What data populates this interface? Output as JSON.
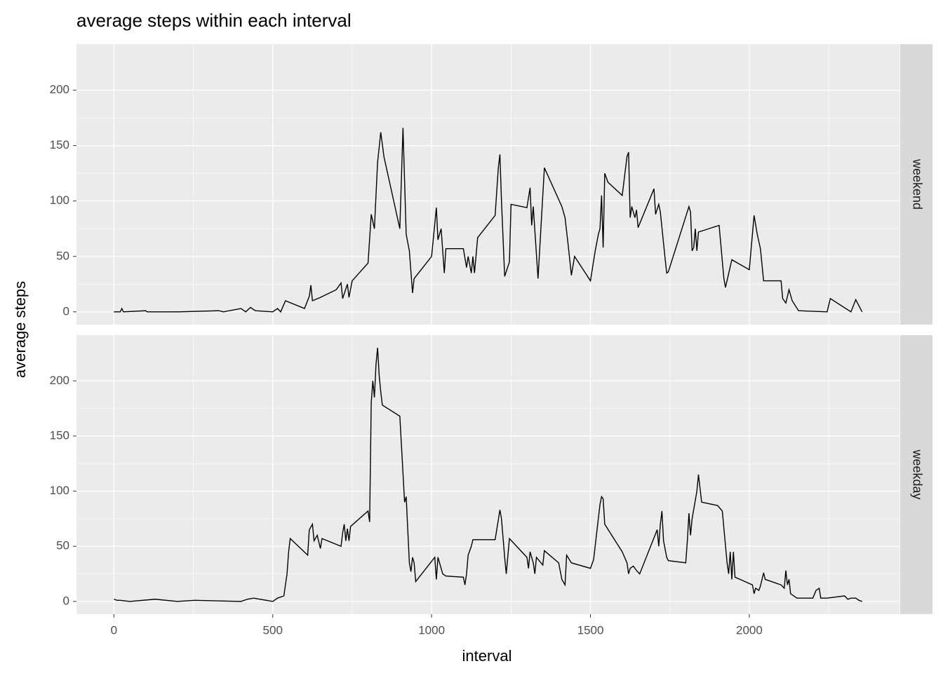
{
  "chart_data": {
    "type": "line",
    "title": "average steps within each interval",
    "x_label": "interval",
    "y_label": "average steps",
    "xlim": [
      -117.75,
      2472.75
    ],
    "xticks": [
      0,
      500,
      1000,
      1500,
      2000
    ],
    "ylim": [
      -11.5,
      241.5
    ],
    "yticks": [
      0,
      50,
      100,
      150,
      200
    ],
    "grid": true,
    "color": "#000000",
    "facets": [
      {
        "name": "weekend",
        "x": [
          0,
          20,
          25,
          30,
          100,
          105,
          200,
          330,
          345,
          400,
          415,
          430,
          445,
          500,
          515,
          525,
          540,
          600,
          615,
          620,
          625,
          650,
          700,
          715,
          720,
          735,
          740,
          750,
          800,
          810,
          820,
          830,
          840,
          850,
          900,
          910,
          920,
          930,
          940,
          945,
          1000,
          1015,
          1020,
          1030,
          1040,
          1045,
          1100,
          1110,
          1115,
          1125,
          1130,
          1135,
          1145,
          1200,
          1210,
          1215,
          1220,
          1230,
          1245,
          1250,
          1300,
          1310,
          1315,
          1320,
          1335,
          1355,
          1410,
          1420,
          1430,
          1440,
          1450,
          1500,
          1515,
          1525,
          1530,
          1535,
          1540,
          1545,
          1555,
          1600,
          1615,
          1620,
          1625,
          1630,
          1640,
          1645,
          1650,
          1700,
          1705,
          1715,
          1720,
          1735,
          1740,
          1745,
          1810,
          1815,
          1820,
          1825,
          1830,
          1835,
          1840,
          1905,
          1920,
          1925,
          1945,
          2000,
          2015,
          2025,
          2035,
          2045,
          2100,
          2105,
          2115,
          2125,
          2135,
          2155,
          2245,
          2255,
          2320,
          2335,
          2355
        ],
        "values": [
          0,
          0,
          3,
          0,
          1,
          0,
          0,
          1,
          0,
          3,
          0,
          4,
          1,
          0,
          3,
          0,
          10,
          3,
          14,
          24,
          10,
          13,
          20,
          26,
          12,
          25,
          13,
          28,
          44,
          88,
          75,
          135,
          162,
          140,
          75,
          166,
          70,
          55,
          17,
          30,
          50,
          94,
          65,
          75,
          35,
          57,
          57,
          40,
          50,
          35,
          50,
          35,
          67,
          87,
          130,
          142,
          100,
          32,
          45,
          97,
          94,
          112,
          78,
          95,
          30,
          130,
          95,
          85,
          60,
          33,
          50,
          28,
          55,
          70,
          75,
          105,
          58,
          125,
          117,
          105,
          140,
          144,
          85,
          95,
          85,
          92,
          76,
          111,
          88,
          97,
          90,
          48,
          35,
          36,
          95,
          90,
          55,
          58,
          75,
          55,
          72,
          78,
          30,
          22,
          47,
          38,
          87,
          70,
          57,
          28,
          28,
          12,
          8,
          20,
          10,
          1,
          0,
          12,
          0,
          11,
          0
        ]
      },
      {
        "name": "weekday",
        "x": [
          0,
          10,
          20,
          50,
          130,
          200,
          255,
          400,
          420,
          440,
          500,
          515,
          535,
          545,
          550,
          555,
          610,
          615,
          625,
          630,
          640,
          650,
          655,
          715,
          720,
          725,
          730,
          735,
          740,
          745,
          800,
          805,
          810,
          815,
          820,
          825,
          830,
          835,
          840,
          845,
          900,
          915,
          920,
          930,
          935,
          940,
          945,
          950,
          1010,
          1015,
          1020,
          1030,
          1035,
          1045,
          1100,
          1105,
          1110,
          1115,
          1125,
          1130,
          1200,
          1205,
          1215,
          1220,
          1230,
          1235,
          1245,
          1300,
          1305,
          1310,
          1320,
          1325,
          1330,
          1350,
          1355,
          1400,
          1410,
          1420,
          1425,
          1440,
          1500,
          1510,
          1530,
          1535,
          1540,
          1545,
          1600,
          1615,
          1620,
          1625,
          1635,
          1645,
          1655,
          1710,
          1715,
          1720,
          1725,
          1730,
          1740,
          1745,
          1800,
          1805,
          1810,
          1815,
          1820,
          1835,
          1840,
          1850,
          1900,
          1915,
          1930,
          1935,
          1940,
          1945,
          1950,
          1955,
          2010,
          2015,
          2020,
          2030,
          2035,
          2045,
          2050,
          2100,
          2110,
          2115,
          2120,
          2125,
          2130,
          2140,
          2150,
          2200,
          2210,
          2220,
          2225,
          2245,
          2300,
          2310,
          2320,
          2335,
          2345,
          2355
        ],
        "values": [
          2,
          1,
          1,
          0,
          2,
          0,
          1,
          0,
          2,
          3,
          0,
          3,
          5,
          25,
          45,
          57,
          42,
          65,
          70,
          55,
          60,
          48,
          57,
          50,
          62,
          70,
          55,
          66,
          55,
          68,
          82,
          72,
          180,
          200,
          185,
          215,
          230,
          205,
          190,
          178,
          168,
          90,
          95,
          35,
          27,
          40,
          35,
          18,
          40,
          20,
          40,
          30,
          25,
          23,
          22,
          15,
          25,
          42,
          50,
          56,
          56,
          65,
          83,
          75,
          40,
          25,
          57,
          40,
          30,
          45,
          35,
          25,
          40,
          33,
          46,
          35,
          20,
          15,
          42,
          35,
          30,
          38,
          88,
          95,
          93,
          70,
          45,
          35,
          25,
          30,
          32,
          28,
          25,
          65,
          50,
          70,
          82,
          55,
          40,
          37,
          35,
          55,
          80,
          60,
          75,
          100,
          115,
          90,
          87,
          82,
          35,
          25,
          45,
          20,
          45,
          22,
          15,
          7,
          12,
          10,
          14,
          26,
          20,
          15,
          12,
          28,
          15,
          20,
          7,
          5,
          3,
          3,
          10,
          12,
          3,
          3,
          5,
          2,
          3,
          3,
          1,
          0
        ]
      }
    ]
  }
}
